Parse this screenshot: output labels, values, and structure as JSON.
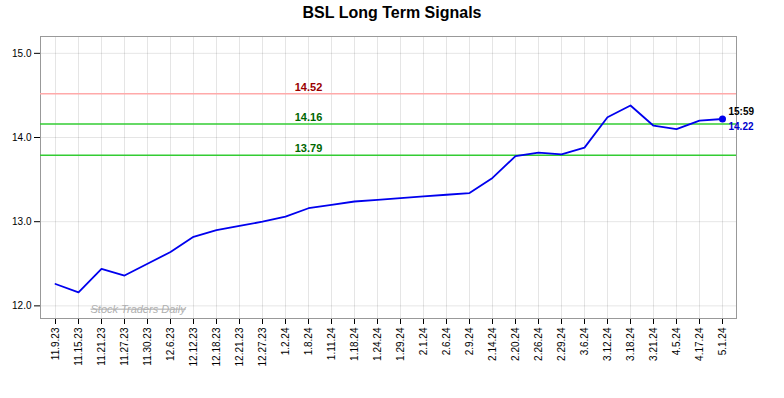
{
  "chart_data": {
    "type": "line",
    "title": "BSL Long Term Signals",
    "categories": [
      "11.9.23",
      "11.15.23",
      "11.21.23",
      "11.27.23",
      "11.30.23",
      "12.6.23",
      "12.12.23",
      "12.18.23",
      "12.21.23",
      "12.27.23",
      "1.2.24",
      "1.8.24",
      "1.11.24",
      "1.18.24",
      "1.24.24",
      "1.29.24",
      "2.1.24",
      "2.6.24",
      "2.9.24",
      "2.14.24",
      "2.20.24",
      "2.26.24",
      "2.29.24",
      "3.6.24",
      "3.12.24",
      "3.18.24",
      "3.21.24",
      "4.5.24",
      "4.17.24",
      "5.1.24"
    ],
    "values": [
      12.26,
      12.16,
      12.44,
      12.36,
      12.5,
      12.64,
      12.82,
      12.9,
      12.95,
      13.0,
      13.06,
      13.16,
      13.2,
      13.24,
      13.26,
      13.28,
      13.3,
      13.32,
      13.34,
      13.52,
      13.78,
      13.82,
      13.8,
      13.88,
      14.24,
      14.38,
      14.14,
      14.1,
      14.2,
      14.22
    ],
    "color": "#0000ee",
    "ylim": [
      11.85,
      15.2
    ],
    "yticks": [
      12,
      13,
      14,
      15
    ],
    "grid": true,
    "hlines": [
      {
        "value": 14.52,
        "label": "14.52",
        "color": "#ffaaaa",
        "label_color": "#990000"
      },
      {
        "value": 14.16,
        "label": "14.16",
        "color": "#33cc33",
        "label_color": "#006600"
      },
      {
        "value": 13.79,
        "label": "13.79",
        "color": "#33cc33",
        "label_color": "#006600"
      }
    ],
    "annotations": [
      {
        "text": "15:59",
        "color": "#000000"
      },
      {
        "text": "14.22",
        "color": "#0000cc"
      }
    ],
    "watermark": {
      "text": "Stock Traders Daily",
      "color": "#b0b0b0"
    }
  }
}
